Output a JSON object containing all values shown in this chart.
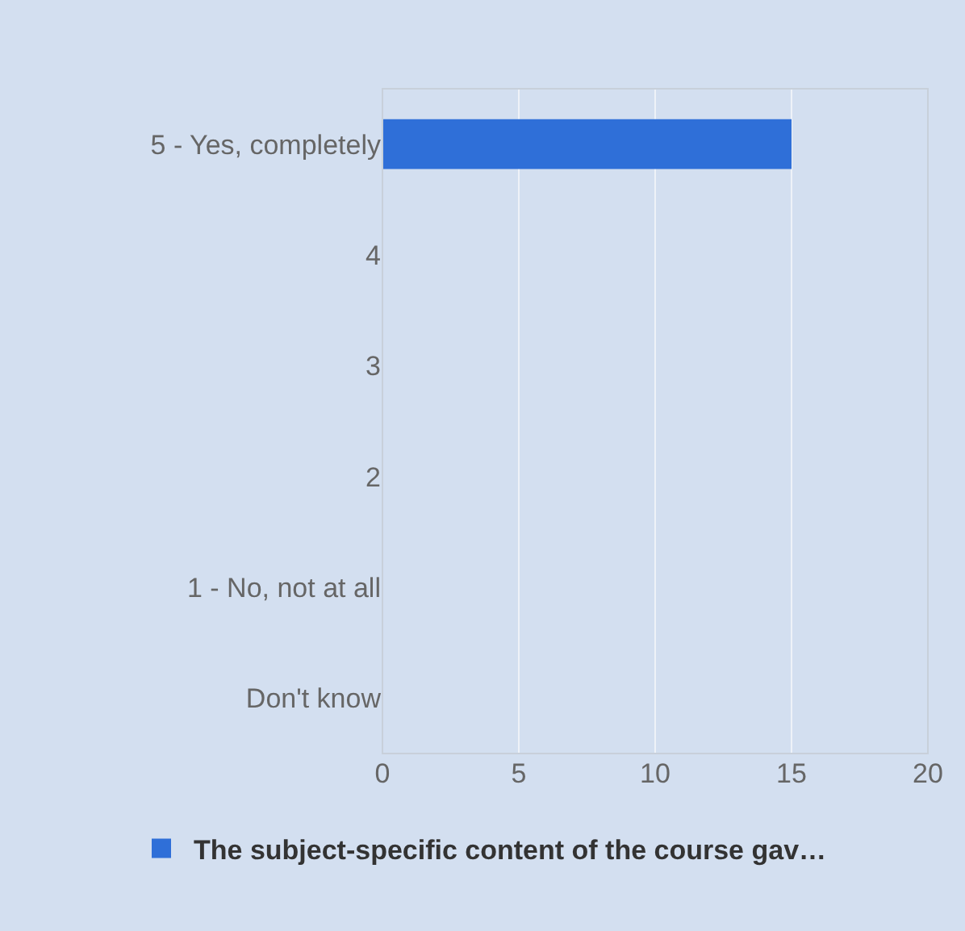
{
  "chart_data": {
    "type": "bar",
    "orientation": "horizontal",
    "categories": [
      "5 - Yes, completely",
      "4",
      "3",
      "2",
      "1 - No, not at all",
      "Don't know"
    ],
    "series": [
      {
        "name": "The subject-specific content of the course gav…",
        "color": "#2f6fd8",
        "values": [
          15,
          0,
          0,
          0,
          0,
          0
        ]
      }
    ],
    "xlim": [
      0,
      20
    ],
    "xticks": [
      0,
      5,
      10,
      15,
      20
    ],
    "grid": "x",
    "legend": "bottom"
  }
}
